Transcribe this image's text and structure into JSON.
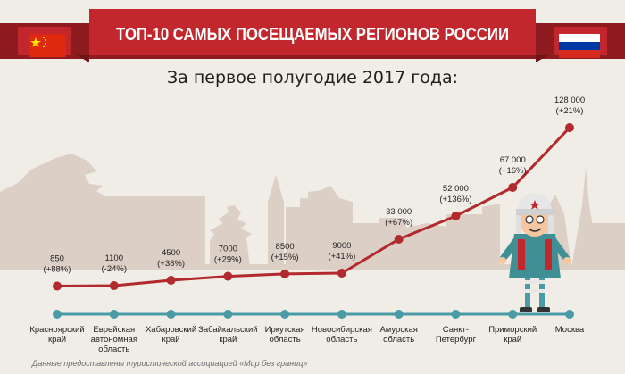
{
  "title": "ТОП-10 САМЫХ ПОСЕЩАЕМЫХ РЕГИОНОВ РОССИИ",
  "subtitle": "За первое полугодие 2017 года:",
  "source": "Данные предоставлены туристической ассоциацией «Мир без границ»",
  "colors": {
    "banner": "#c1272d",
    "banner_dark": "#8e1b20",
    "line": "#b22a2e",
    "axis": "#4a9ba6",
    "skyline": "#d9cbc2",
    "background": "#f0ece6"
  },
  "icons": {
    "left_flag": "china-flag-icon",
    "right_flag": "russia-flag-icon",
    "mascot": "tourist-character-icon"
  },
  "chart_data": {
    "type": "line",
    "categories": [
      [
        "Красноярский",
        "край"
      ],
      [
        "Еврейская",
        "автономная",
        "область"
      ],
      [
        "Хабаровский",
        "край"
      ],
      [
        "Забайкальский",
        "край"
      ],
      [
        "Иркутская",
        "область"
      ],
      [
        "Новосибирская",
        "область"
      ],
      [
        "Амурская",
        "область"
      ],
      [
        "Санкт-",
        "Петербург"
      ],
      [
        "Приморский",
        "край"
      ],
      [
        "Москва"
      ]
    ],
    "values": [
      850,
      1100,
      4500,
      7000,
      8500,
      9000,
      33000,
      52000,
      67000,
      128000
    ],
    "value_labels": [
      "850",
      "1100",
      "4500",
      "7000",
      "8500",
      "9000",
      "33 000",
      "52 000",
      "67 000",
      "128 000"
    ],
    "change_labels": [
      "(+88%)",
      "(-24%)",
      "(+38%)",
      "(+29%)",
      "(+15%)",
      "(+41%)",
      "(+67%)",
      "(+136%)",
      "(+16%)",
      "(+21%)"
    ],
    "grid": false,
    "legend": "none"
  }
}
